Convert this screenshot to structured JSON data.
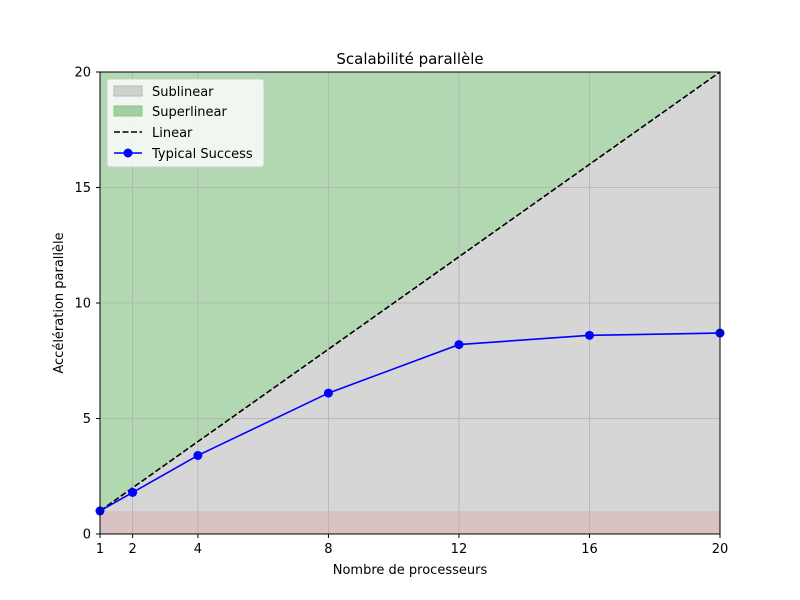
{
  "chart_data": {
    "type": "line",
    "title": "Scalabilité parallèle",
    "xlabel": "Nombre de processeurs",
    "ylabel": "Accélération parallèle",
    "xlim": [
      1,
      20
    ],
    "ylim": [
      0,
      20
    ],
    "xticks": [
      1,
      2,
      4,
      8,
      12,
      16,
      20
    ],
    "yticks": [
      0,
      5,
      10,
      15,
      20
    ],
    "grid": true,
    "legend_position": "top-left",
    "regions": [
      {
        "name": "Sublinear",
        "color": "#d6d6d6",
        "legend_color": "#cfd1cb"
      },
      {
        "name": "Superlinear",
        "color": "#b2d8b2",
        "legend_color": "#9fd19f"
      },
      {
        "name": "",
        "color": "#d9c2c2",
        "y_from": 0,
        "y_to": 1
      }
    ],
    "series": [
      {
        "name": "Linear",
        "style": "dashed",
        "color": "#000000",
        "x": [
          1,
          20
        ],
        "y": [
          1,
          20
        ]
      },
      {
        "name": "Typical Success",
        "style": "solid-marker",
        "color": "#0000ff",
        "x": [
          1,
          2,
          4,
          8,
          12,
          16,
          20
        ],
        "y": [
          1.0,
          1.8,
          3.4,
          6.1,
          8.2,
          8.6,
          8.7
        ]
      }
    ]
  }
}
